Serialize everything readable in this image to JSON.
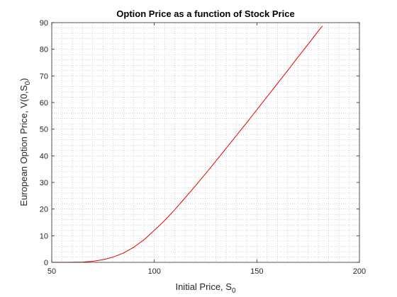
{
  "chart_data": {
    "type": "line",
    "title": "Option Price as a function of Stock Price",
    "xlabel": "Initial Price, S",
    "xlabel_sub": "0",
    "ylabel": "European Option Price, V(0,S",
    "ylabel_sub": "0",
    "ylabel_suffix": ")",
    "xlim": [
      50,
      200
    ],
    "ylim": [
      0,
      90
    ],
    "xticks": [
      50,
      100,
      150,
      200
    ],
    "yticks": [
      0,
      10,
      20,
      30,
      40,
      50,
      60,
      70,
      80,
      90
    ],
    "grid": "minor-dotted",
    "series": [
      {
        "color": "#e00000",
        "x": [
          50,
          55,
          60,
          65,
          70,
          75,
          80,
          85,
          90,
          95,
          100,
          105,
          110,
          115,
          120,
          125,
          130,
          135,
          140,
          145,
          150,
          155,
          160,
          165,
          170,
          175,
          180,
          182
        ],
        "y": [
          0.0,
          0.0,
          0.02,
          0.1,
          0.4,
          1.0,
          2.0,
          3.5,
          5.7,
          8.5,
          12.0,
          15.7,
          19.8,
          24.2,
          28.7,
          33.3,
          38.0,
          42.8,
          47.6,
          52.4,
          57.3,
          62.2,
          67.1,
          72.0,
          77.0,
          81.9,
          86.9,
          88.8
        ]
      }
    ]
  }
}
